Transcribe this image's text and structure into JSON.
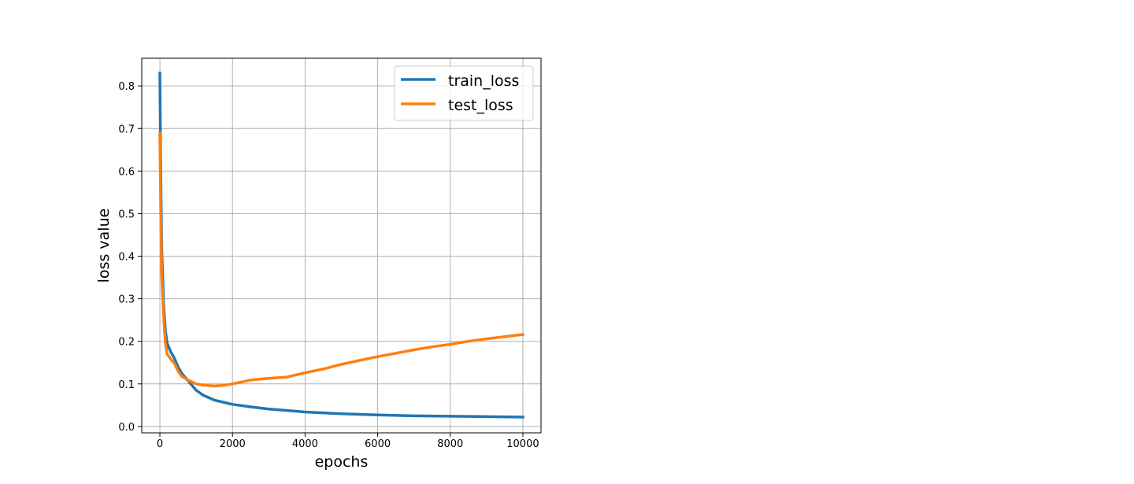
{
  "chart_data": {
    "type": "line",
    "title": "",
    "xlabel": "epochs",
    "ylabel": "loss value",
    "xlim": [
      -500,
      10500
    ],
    "ylim": [
      -0.015,
      0.865
    ],
    "xticks": [
      0,
      2000,
      4000,
      6000,
      8000,
      10000
    ],
    "xtick_labels": [
      "0",
      "2000",
      "4000",
      "6000",
      "8000",
      "10000"
    ],
    "yticks": [
      0.0,
      0.1,
      0.2,
      0.3,
      0.4,
      0.5,
      0.6,
      0.7,
      0.8
    ],
    "ytick_labels": [
      "0.0",
      "0.1",
      "0.2",
      "0.3",
      "0.4",
      "0.5",
      "0.6",
      "0.7",
      "0.8"
    ],
    "grid": true,
    "legend_position": "top-right",
    "series": [
      {
        "name": "train_loss",
        "color": "#1f77b4",
        "x": [
          0,
          20,
          50,
          100,
          150,
          200,
          300,
          400,
          500,
          600,
          800,
          1000,
          1200,
          1500,
          2000,
          2500,
          3000,
          4000,
          5000,
          6000,
          7000,
          8000,
          9000,
          10000
        ],
        "y": [
          0.83,
          0.62,
          0.42,
          0.29,
          0.225,
          0.195,
          0.175,
          0.16,
          0.14,
          0.125,
          0.105,
          0.085,
          0.073,
          0.062,
          0.052,
          0.046,
          0.041,
          0.034,
          0.03,
          0.027,
          0.025,
          0.024,
          0.023,
          0.022
        ]
      },
      {
        "name": "test_loss",
        "color": "#ff7f0e",
        "x": [
          0,
          20,
          50,
          100,
          150,
          200,
          300,
          400,
          500,
          600,
          800,
          1000,
          1200,
          1500,
          1800,
          2000,
          2500,
          3000,
          3500,
          4000,
          4500,
          5000,
          5500,
          6000,
          6500,
          7000,
          7500,
          8000,
          8500,
          9000,
          9500,
          10000
        ],
        "y": [
          0.69,
          0.52,
          0.36,
          0.26,
          0.195,
          0.17,
          0.158,
          0.148,
          0.13,
          0.118,
          0.108,
          0.1,
          0.097,
          0.095,
          0.097,
          0.1,
          0.109,
          0.113,
          0.116,
          0.126,
          0.135,
          0.146,
          0.155,
          0.164,
          0.172,
          0.18,
          0.187,
          0.193,
          0.2,
          0.206,
          0.211,
          0.216
        ]
      }
    ]
  }
}
